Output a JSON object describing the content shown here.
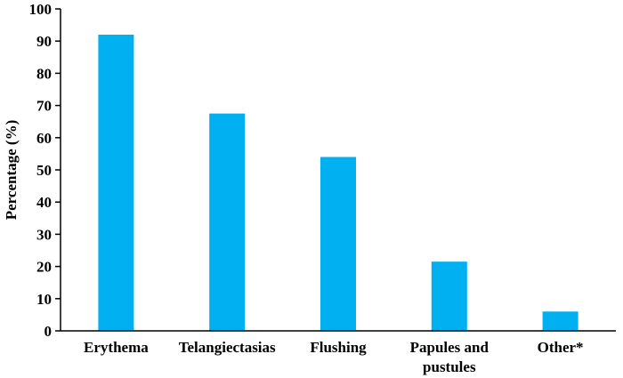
{
  "chart_data": {
    "type": "bar",
    "title": "",
    "xlabel": "",
    "ylabel": "Percentage (%)",
    "categories": [
      "Erythema",
      "Telangiectasias",
      "Flushing",
      "Papules and pustules",
      "Other*"
    ],
    "category_lines": [
      [
        "Erythema"
      ],
      [
        "Telangiectasias"
      ],
      [
        "Flushing"
      ],
      [
        "Papules and",
        "pustules"
      ],
      [
        "Other*"
      ]
    ],
    "values": [
      92,
      67.5,
      54,
      21.5,
      6
    ],
    "ylim": [
      0,
      100
    ],
    "yticks": [
      0,
      10,
      20,
      30,
      40,
      50,
      60,
      70,
      80,
      90,
      100
    ],
    "grid": false,
    "bar_color": "#00B0F0"
  }
}
